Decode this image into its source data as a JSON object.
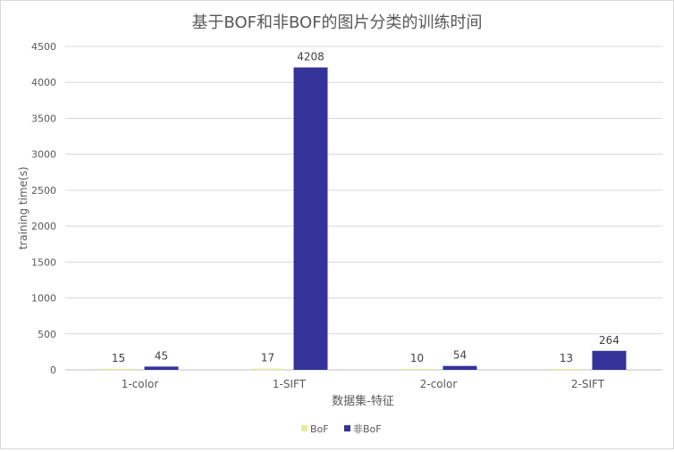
{
  "chart_data": {
    "type": "bar",
    "title": "基于BOF和非BOF的图片分类的训练时间",
    "xlabel": "数据集-特征",
    "ylabel": "training time(s)",
    "categories": [
      "1-color",
      "1-SIFT",
      "2-color",
      "2-SIFT"
    ],
    "series": [
      {
        "name": "BoF",
        "values": [
          15,
          17,
          10,
          13
        ],
        "color": "#e6ec9f"
      },
      {
        "name": "非BoF",
        "values": [
          45,
          4208,
          54,
          264
        ],
        "color": "#333399"
      }
    ],
    "ylim": [
      0,
      4500
    ],
    "yticks": [
      0,
      500,
      1000,
      1500,
      2000,
      2500,
      3000,
      3500,
      4000,
      4500
    ],
    "grid": true,
    "legend": "bottom"
  }
}
